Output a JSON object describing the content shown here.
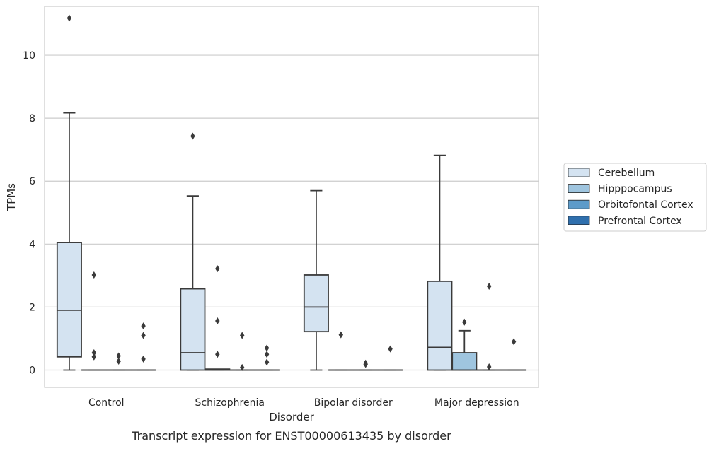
{
  "chart_data": {
    "type": "box",
    "title": "",
    "caption": "Transcript expression for ENST00000613435 by disorder",
    "xlabel": "Disorder",
    "ylabel": "TPMs",
    "ylim": [
      -0.55,
      11.55
    ],
    "yticks": [
      0,
      2,
      4,
      6,
      8,
      10
    ],
    "grid": "horizontal",
    "legend_position": "right",
    "categories": [
      "Control",
      "Schizophrenia",
      "Bipolar disorder",
      "Major depression"
    ],
    "series": [
      {
        "name": "Cerebellum",
        "color": "#d4e3f1",
        "boxes": [
          {
            "category": "Control",
            "whislo": 0,
            "q1": 0.42,
            "med": 1.9,
            "q3": 4.05,
            "whishi": 8.17,
            "fliers": [
              11.18
            ]
          },
          {
            "category": "Schizophrenia",
            "whislo": 0,
            "q1": 0,
            "med": 0.55,
            "q3": 2.58,
            "whishi": 5.53,
            "fliers": [
              7.43
            ]
          },
          {
            "category": "Bipolar disorder",
            "whislo": 0,
            "q1": 1.22,
            "med": 2.0,
            "q3": 3.02,
            "whishi": 5.7,
            "fliers": []
          },
          {
            "category": "Major depression",
            "whislo": 0,
            "q1": 0,
            "med": 0.72,
            "q3": 2.82,
            "whishi": 6.82,
            "fliers": []
          }
        ]
      },
      {
        "name": "Hipppocampus",
        "color": "#9fc5df",
        "boxes": [
          {
            "category": "Control",
            "whislo": 0,
            "q1": 0,
            "med": 0,
            "q3": 0,
            "whishi": 0,
            "fliers": [
              0.42,
              0.55,
              3.02
            ]
          },
          {
            "category": "Schizophrenia",
            "whislo": 0,
            "q1": 0,
            "med": 0,
            "q3": 0.03,
            "whishi": 0.03,
            "fliers": [
              0.5,
              1.56,
              3.22
            ]
          },
          {
            "category": "Bipolar disorder",
            "whislo": 0,
            "q1": 0,
            "med": 0,
            "q3": 0,
            "whishi": 0,
            "fliers": [
              1.12
            ]
          },
          {
            "category": "Major depression",
            "whislo": 0,
            "q1": 0,
            "med": 0,
            "q3": 0.55,
            "whishi": 1.25,
            "fliers": [
              1.52
            ]
          }
        ]
      },
      {
        "name": "Orbitofontal Cortex",
        "color": "#5d9bc9",
        "boxes": [
          {
            "category": "Control",
            "whislo": 0,
            "q1": 0,
            "med": 0,
            "q3": 0,
            "whishi": 0,
            "fliers": [
              0.28,
              0.45
            ]
          },
          {
            "category": "Schizophrenia",
            "whislo": 0,
            "q1": 0,
            "med": 0,
            "q3": 0,
            "whishi": 0,
            "fliers": [
              0.08,
              1.1
            ]
          },
          {
            "category": "Bipolar disorder",
            "whislo": 0,
            "q1": 0,
            "med": 0,
            "q3": 0,
            "whishi": 0,
            "fliers": [
              0.18,
              0.22
            ]
          },
          {
            "category": "Major depression",
            "whislo": 0,
            "q1": 0,
            "med": 0,
            "q3": 0,
            "whishi": 0,
            "fliers": [
              0.1,
              2.66
            ]
          }
        ]
      },
      {
        "name": "Prefrontal Cortex",
        "color": "#2f6fad",
        "boxes": [
          {
            "category": "Control",
            "whislo": 0,
            "q1": 0,
            "med": 0,
            "q3": 0,
            "whishi": 0,
            "fliers": [
              0.35,
              1.1,
              1.4
            ]
          },
          {
            "category": "Schizophrenia",
            "whislo": 0,
            "q1": 0,
            "med": 0,
            "q3": 0,
            "whishi": 0,
            "fliers": [
              0.25,
              0.5,
              0.7
            ]
          },
          {
            "category": "Bipolar disorder",
            "whislo": 0,
            "q1": 0,
            "med": 0,
            "q3": 0,
            "whishi": 0,
            "fliers": [
              0.67
            ]
          },
          {
            "category": "Major depression",
            "whislo": 0,
            "q1": 0,
            "med": 0,
            "q3": 0,
            "whishi": 0,
            "fliers": [
              0.9
            ]
          }
        ]
      }
    ]
  }
}
